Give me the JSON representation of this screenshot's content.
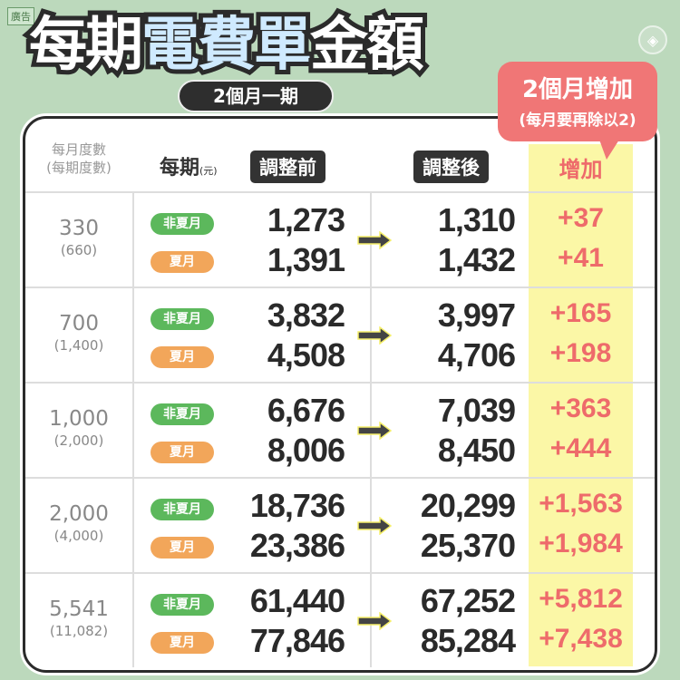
{
  "ad_label": "廣告",
  "title": {
    "part1": "每期",
    "part2": "電費單",
    "part3": "金額",
    "subtitle": "2個月一期"
  },
  "bubble": {
    "line1": "2個月增加",
    "line2": "(每月要再除以2)"
  },
  "header": {
    "kwh_line1": "每月度數",
    "kwh_line2": "(每期度數)",
    "per_period": "每期",
    "unit": "(元)",
    "before": "調整前",
    "after": "調整後",
    "increase": "增加"
  },
  "labels": {
    "non_summer": "非夏月",
    "summer": "夏月"
  },
  "colors": {
    "background": "#bcd9bc",
    "non_summer": "#5cb85c",
    "summer": "#f2a65a",
    "increase": "#ee6b6b",
    "highlight": "#fbf7a6"
  },
  "rows": [
    {
      "kwh": "330",
      "kwh_period": "(660)",
      "before_ns": "1,273",
      "before_s": "1,391",
      "after_ns": "1,310",
      "after_s": "1,432",
      "inc_ns": "+37",
      "inc_s": "+41"
    },
    {
      "kwh": "700",
      "kwh_period": "(1,400)",
      "before_ns": "3,832",
      "before_s": "4,508",
      "after_ns": "3,997",
      "after_s": "4,706",
      "inc_ns": "+165",
      "inc_s": "+198"
    },
    {
      "kwh": "1,000",
      "kwh_period": "(2,000)",
      "before_ns": "6,676",
      "before_s": "8,006",
      "after_ns": "7,039",
      "after_s": "8,450",
      "inc_ns": "+363",
      "inc_s": "+444"
    },
    {
      "kwh": "2,000",
      "kwh_period": "(4,000)",
      "before_ns": "18,736",
      "before_s": "23,386",
      "after_ns": "20,299",
      "after_s": "25,370",
      "inc_ns": "+1,563",
      "inc_s": "+1,984"
    },
    {
      "kwh": "5,541",
      "kwh_period": "(11,082)",
      "before_ns": "61,440",
      "before_s": "77,846",
      "after_ns": "67,252",
      "after_s": "85,284",
      "inc_ns": "+5,812",
      "inc_s": "+7,438"
    }
  ]
}
